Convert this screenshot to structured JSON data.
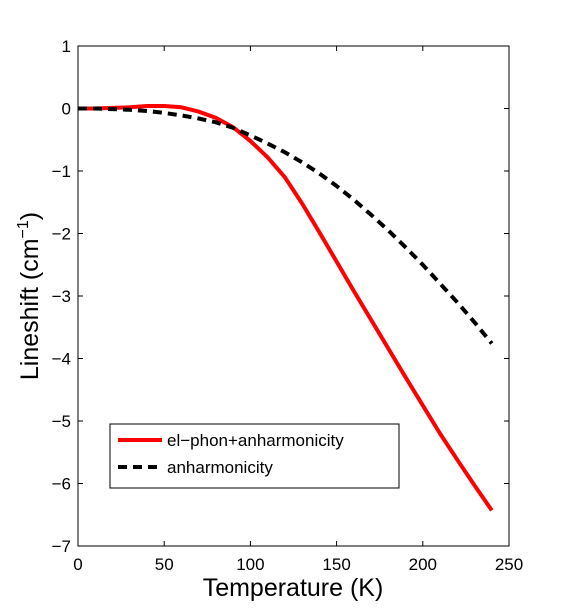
{
  "chart_data": {
    "type": "line",
    "title": "",
    "xlabel": "Temperature (K)",
    "ylabel": {
      "text": "Lineshift (cm",
      "superscript": "−1",
      "suffix": ")"
    },
    "xlim": [
      0,
      250
    ],
    "ylim": [
      -7,
      1
    ],
    "x_ticks": [
      0,
      50,
      100,
      150,
      200,
      250
    ],
    "y_ticks": [
      1,
      0,
      -1,
      -2,
      -3,
      -4,
      -5,
      -6,
      -7
    ],
    "x_tick_labels": [
      "0",
      "50",
      "100",
      "150",
      "200",
      "250"
    ],
    "y_tick_labels": [
      "1",
      "0",
      "−1",
      "−2",
      "−3",
      "−4",
      "−5",
      "−6",
      "−7"
    ],
    "grid": false,
    "legend_position": "bottom-left",
    "series": [
      {
        "name": "el−phon+anharmonicity",
        "color": "#ff0000",
        "style": "solid",
        "x": [
          0,
          10,
          20,
          30,
          40,
          50,
          60,
          70,
          80,
          90,
          100,
          110,
          120,
          130,
          140,
          150,
          160,
          170,
          180,
          190,
          200,
          210,
          220,
          230,
          240
        ],
        "y": [
          0,
          0.0,
          0.01,
          0.02,
          0.04,
          0.04,
          0.02,
          -0.05,
          -0.15,
          -0.3,
          -0.52,
          -0.78,
          -1.1,
          -1.52,
          -1.98,
          -2.45,
          -2.92,
          -3.38,
          -3.84,
          -4.3,
          -4.75,
          -5.2,
          -5.62,
          -6.03,
          -6.43
        ]
      },
      {
        "name": "anharmonicity",
        "color": "#000000",
        "style": "dashed",
        "x": [
          0,
          10,
          20,
          30,
          40,
          50,
          60,
          70,
          80,
          90,
          100,
          110,
          120,
          130,
          140,
          150,
          160,
          170,
          180,
          190,
          200,
          210,
          220,
          230,
          240
        ],
        "y": [
          0,
          0,
          -0.01,
          -0.02,
          -0.04,
          -0.07,
          -0.11,
          -0.16,
          -0.22,
          -0.31,
          -0.43,
          -0.56,
          -0.7,
          -0.86,
          -1.04,
          -1.24,
          -1.46,
          -1.7,
          -1.95,
          -2.22,
          -2.5,
          -2.8,
          -3.1,
          -3.42,
          -3.76
        ]
      }
    ]
  }
}
